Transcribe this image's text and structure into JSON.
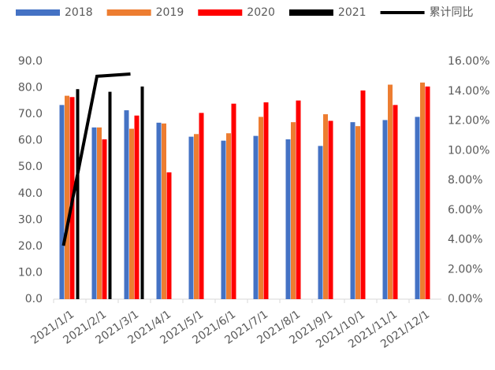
{
  "chart_data": {
    "type": "bar",
    "categories": [
      "2021/1/1",
      "2021/2/1",
      "2021/3/1",
      "2021/4/1",
      "2021/5/1",
      "2021/6/1",
      "2021/7/1",
      "2021/8/1",
      "2021/9/1",
      "2021/10/1",
      "2021/11/1",
      "2021/12/1"
    ],
    "series": [
      {
        "name": "2018",
        "color": "#4472c4",
        "values": [
          73.5,
          65,
          71.5,
          66.8,
          61.5,
          60,
          61.8,
          60.5,
          58,
          67,
          67.8,
          69
        ]
      },
      {
        "name": "2019",
        "color": "#ed7d31",
        "values": [
          77,
          65,
          64.5,
          66.5,
          62.5,
          62.8,
          69,
          67,
          70,
          65.5,
          81.2,
          82
        ]
      },
      {
        "name": "2020",
        "color": "#ff0000",
        "values": [
          76.5,
          60.5,
          69.5,
          48,
          70.5,
          74,
          74.5,
          75.2,
          67.5,
          79,
          73.5,
          80.5
        ]
      },
      {
        "name": "2021",
        "color": "#000000",
        "values": [
          79.5,
          78.5,
          80.5,
          null,
          null,
          null,
          null,
          null,
          null,
          null,
          null,
          null
        ]
      },
      {
        "name": "累计同比",
        "color": "#000000",
        "type": "line",
        "axis": "y2",
        "values": [
          3.6,
          15.0,
          15.15,
          null,
          null,
          null,
          null,
          null,
          null,
          null,
          null,
          null
        ]
      }
    ],
    "ylim": [
      0,
      90
    ],
    "yticks": [
      {
        "value": 0,
        "label": "0.0"
      },
      {
        "value": 10,
        "label": "10.0"
      },
      {
        "value": 20,
        "label": "20.0"
      },
      {
        "value": 30,
        "label": "30.0"
      },
      {
        "value": 40,
        "label": "40.0"
      },
      {
        "value": 50,
        "label": "50.0"
      },
      {
        "value": 60,
        "label": "60.0"
      },
      {
        "value": 70,
        "label": "70.0"
      },
      {
        "value": 80,
        "label": "80.0"
      },
      {
        "value": 90,
        "label": "90.0"
      }
    ],
    "y2lim": [
      0,
      16
    ],
    "y2ticks": [
      {
        "value": 0,
        "label": "0.00%"
      },
      {
        "value": 2,
        "label": "2.00%"
      },
      {
        "value": 4,
        "label": "4.00%"
      },
      {
        "value": 6,
        "label": "6.00%"
      },
      {
        "value": 8,
        "label": "8.00%"
      },
      {
        "value": 10,
        "label": "10.00%"
      },
      {
        "value": 12,
        "label": "12.00%"
      },
      {
        "value": 14,
        "label": "14.00%"
      },
      {
        "value": 16,
        "label": "16.00%"
      }
    ],
    "legend": "top"
  }
}
